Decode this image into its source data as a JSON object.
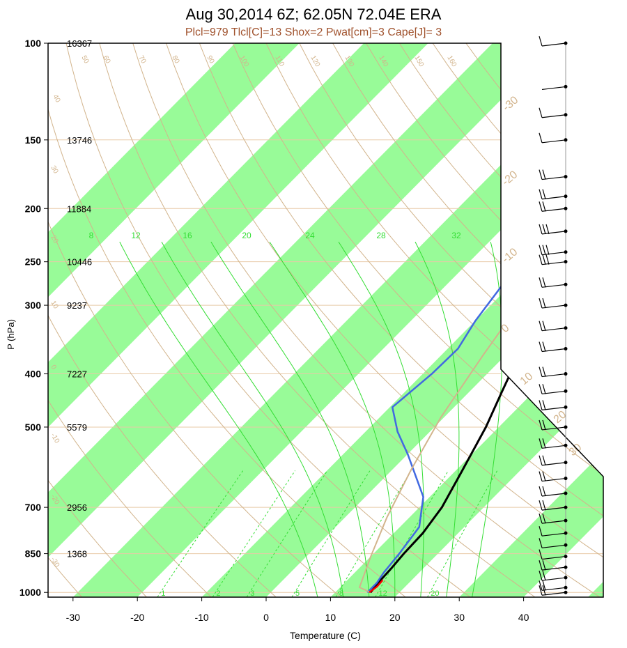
{
  "chart_data": {
    "type": "line",
    "title": "Aug 30,2014 6Z; 62.05N 72.04E ERA",
    "subtitle": "Plcl=979 Tlcl[C]=13 Shox=2 Pwat[cm]=3 Cape[J]= 3",
    "xlabel": "Temperature (C)",
    "ylabel": "P (hPa)",
    "xlim": [
      -33,
      36
    ],
    "ylim": [
      1020,
      100
    ],
    "y_scale": "log",
    "x_ticks": [
      "-30",
      "-20",
      "-10",
      "0",
      "10",
      "20",
      "30",
      "40"
    ],
    "x_tick_values": [
      -30,
      -20,
      -10,
      0,
      10,
      20,
      30,
      40
    ],
    "pressure_levels": [
      {
        "p": 100,
        "label": "100",
        "height": "16367"
      },
      {
        "p": 150,
        "label": "150",
        "height": "13746"
      },
      {
        "p": 200,
        "label": "200",
        "height": "11884"
      },
      {
        "p": 250,
        "label": "250",
        "height": "10446"
      },
      {
        "p": 300,
        "label": "300",
        "height": "9237"
      },
      {
        "p": 400,
        "label": "400",
        "height": "7227"
      },
      {
        "p": 500,
        "label": "500",
        "height": "5579"
      },
      {
        "p": 700,
        "label": "700",
        "height": "2956"
      },
      {
        "p": 850,
        "label": "850",
        "height": "1368"
      },
      {
        "p": 1000,
        "label": "1000",
        "height": ""
      }
    ],
    "isotherm_bands_start": [
      -90,
      -70,
      -50,
      -30,
      -10,
      10,
      30,
      50
    ],
    "isotherm_labels": [
      "-30",
      "-20",
      "-10",
      "0",
      "10",
      "20",
      "30"
    ],
    "dry_adiabat_labels": [
      "-30",
      "-20",
      "-10",
      "0",
      "10",
      "20",
      "30",
      "40",
      "50",
      "60",
      "70",
      "80",
      "90",
      "100",
      "110",
      "120",
      "130",
      "140",
      "150",
      "160"
    ],
    "mixing_ratio_labels": [
      "1",
      "2",
      "3",
      "5",
      "8",
      "12",
      "20"
    ],
    "moist_adiabat_labels": [
      "8",
      "12",
      "16",
      "20",
      "24",
      "28",
      "32"
    ],
    "series": [
      {
        "name": "",
        "color": "#000000",
        "points": [
          [
            15.5,
            1000
          ],
          [
            15.2,
            960
          ],
          [
            15.0,
            900
          ],
          [
            14.7,
            850
          ],
          [
            14.5,
            780
          ],
          [
            13.5,
            700
          ],
          [
            11,
            600
          ],
          [
            8,
            500
          ],
          [
            5,
            430
          ],
          [
            1,
            350
          ],
          [
            -1.5,
            300
          ],
          [
            -4.2,
            250
          ],
          [
            -4.0,
            230
          ],
          [
            -2,
            210
          ],
          [
            0,
            190
          ],
          [
            3.5,
            170
          ],
          [
            6.5,
            150
          ],
          [
            9,
            135
          ],
          [
            15,
            120
          ],
          [
            20,
            105
          ],
          [
            22.8,
            100
          ]
        ]
      },
      {
        "name": "",
        "color": "#4169e1",
        "points": [
          [
            15,
            1000
          ],
          [
            15,
            960
          ],
          [
            14.5,
            920
          ],
          [
            14,
            850
          ],
          [
            13,
            760
          ],
          [
            9,
            670
          ],
          [
            0,
            560
          ],
          [
            -5,
            510
          ],
          [
            -9.6,
            460
          ],
          [
            -8.6,
            400
          ],
          [
            -8.4,
            360
          ],
          [
            -10,
            320
          ],
          [
            -11.8,
            260
          ],
          [
            -11,
            225
          ],
          [
            -11.2,
            200
          ],
          [
            -12.5,
            175
          ],
          [
            -15.8,
            152
          ],
          [
            -14,
            133
          ],
          [
            -10,
            112
          ],
          [
            -8.4,
            100
          ]
        ]
      },
      {
        "name": "",
        "color": "#d2b48c",
        "points": [
          [
            15.5,
            1000
          ],
          [
            13,
            979
          ],
          [
            10,
            860
          ],
          [
            6.5,
            730
          ],
          [
            3,
            600
          ],
          [
            -0.5,
            480
          ],
          [
            -3.5,
            370
          ],
          [
            -6,
            290
          ],
          [
            -7.3,
            230
          ]
        ]
      },
      {
        "name": "",
        "color": "#ff0000",
        "points": [
          [
            15.3,
            1000
          ],
          [
            15.6,
            975
          ],
          [
            15.5,
            950
          ]
        ]
      }
    ],
    "wind_barbs": [
      {
        "p": 100,
        "barbs": 1
      },
      {
        "p": 120,
        "barbs": 0
      },
      {
        "p": 135,
        "barbs": 1
      },
      {
        "p": 150,
        "barbs": 1
      },
      {
        "p": 175,
        "barbs": 2
      },
      {
        "p": 190,
        "barbs": 2
      },
      {
        "p": 200,
        "barbs": 2
      },
      {
        "p": 220,
        "barbs": 3
      },
      {
        "p": 240,
        "barbs": 3
      },
      {
        "p": 250,
        "barbs": 3
      },
      {
        "p": 275,
        "barbs": 2
      },
      {
        "p": 300,
        "barbs": 2
      },
      {
        "p": 330,
        "barbs": 2
      },
      {
        "p": 360,
        "barbs": 2
      },
      {
        "p": 400,
        "barbs": 2
      },
      {
        "p": 430,
        "barbs": 2
      },
      {
        "p": 460,
        "barbs": 2
      },
      {
        "p": 500,
        "barbs": 2
      },
      {
        "p": 540,
        "barbs": 2
      },
      {
        "p": 580,
        "barbs": 2
      },
      {
        "p": 620,
        "barbs": 2
      },
      {
        "p": 660,
        "barbs": 2
      },
      {
        "p": 700,
        "barbs": 2
      },
      {
        "p": 740,
        "barbs": 2
      },
      {
        "p": 780,
        "barbs": 1
      },
      {
        "p": 820,
        "barbs": 1
      },
      {
        "p": 860,
        "barbs": 1
      },
      {
        "p": 900,
        "barbs": 2
      },
      {
        "p": 940,
        "barbs": 2
      },
      {
        "p": 980,
        "barbs": 2
      },
      {
        "p": 1000,
        "barbs": 2
      }
    ],
    "grid": true
  },
  "colors": {
    "band": "#98fb98",
    "adiabat": "#d2b48c",
    "isobar": "#e8c9a6",
    "mixing": "#33dd33",
    "axis": "#000000"
  }
}
